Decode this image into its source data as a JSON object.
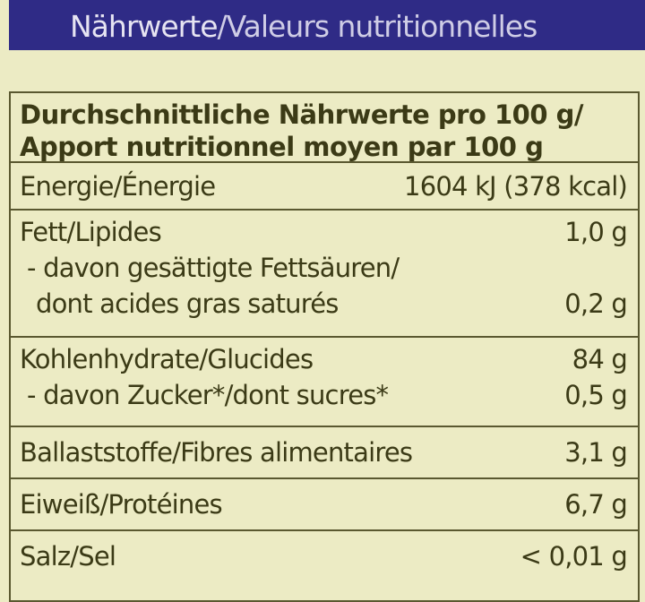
{
  "title": {
    "de": "Nährwerte",
    "sep": "/",
    "fr": "Valeurs nutritionnelles"
  },
  "header": {
    "line1": "Durchschnittliche Nährwerte pro 100 g/",
    "line2": "Apport nutritionnel moyen par 100 g"
  },
  "rows": {
    "energy": {
      "label": "Energie/Énergie",
      "value": "1604 kJ (378 kcal)"
    },
    "fat": {
      "label": "Fett/Lipides",
      "value": "1,0 g"
    },
    "saturated": {
      "label1": "- davon gesättigte Fettsäuren/",
      "label2": "dont acides gras saturés",
      "value": "0,2 g"
    },
    "carbs": {
      "label": "Kohlenhydrate/Glucides",
      "value": "84 g"
    },
    "sugar": {
      "label": "- davon Zucker*/dont sucres*",
      "value": "0,5 g"
    },
    "fibre": {
      "label": "Ballaststoffe/Fibres alimentaires",
      "value": "3,1 g"
    },
    "protein": {
      "label": "Eiweiß/Protéines",
      "value": "6,7 g"
    },
    "salt": {
      "label": "Salz/Sel",
      "value": "< 0,01 g"
    }
  },
  "colors": {
    "band": "#2f2b86",
    "background": "#ecebc4",
    "text": "#3b3a16"
  }
}
